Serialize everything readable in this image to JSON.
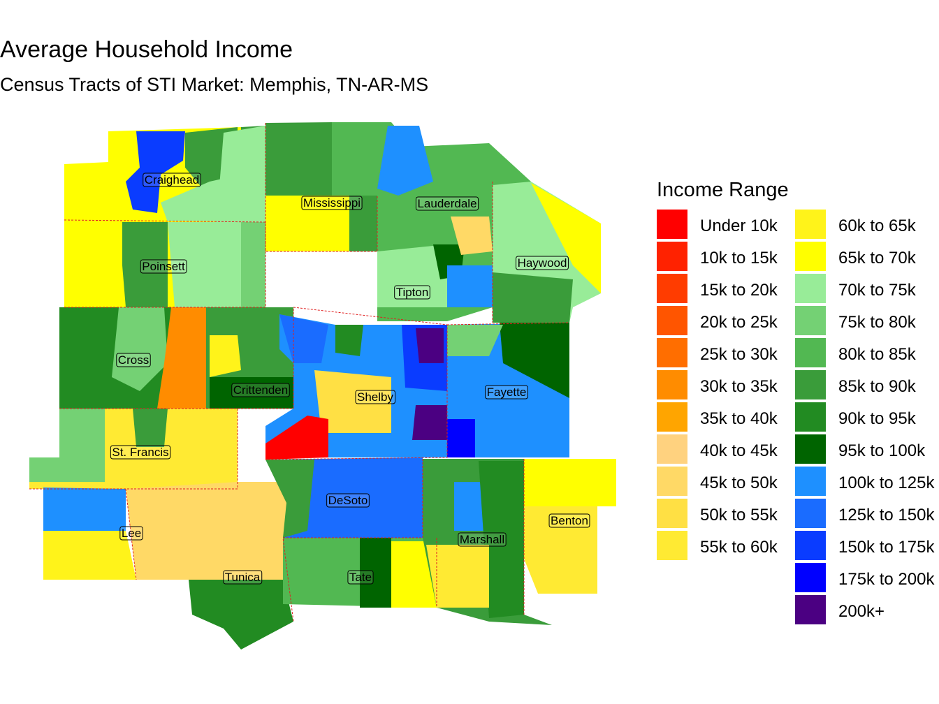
{
  "title": "Average Household Income",
  "subtitle": "Census Tracts of STI Market: Memphis, TN-AR-MS",
  "legend": {
    "title": "Income Range",
    "items": [
      {
        "label": "Under 10k",
        "color": "#ff0000"
      },
      {
        "label": "10k to 15k",
        "color": "#ff2200"
      },
      {
        "label": "15k to 20k",
        "color": "#ff3c00"
      },
      {
        "label": "20k to 25k",
        "color": "#ff5500"
      },
      {
        "label": "25k to 30k",
        "color": "#ff6e00"
      },
      {
        "label": "30k to 35k",
        "color": "#ff8c00"
      },
      {
        "label": "35k to 40k",
        "color": "#ffa500"
      },
      {
        "label": "40k to 45k",
        "color": "#ffd27f"
      },
      {
        "label": "45k to 50k",
        "color": "#ffd966"
      },
      {
        "label": "50k to 55k",
        "color": "#ffe044"
      },
      {
        "label": "55k to 60k",
        "color": "#ffea33"
      },
      {
        "label": "60k to 65k",
        "color": "#fff31a"
      },
      {
        "label": "65k to 70k",
        "color": "#ffff00"
      },
      {
        "label": "70k to 75k",
        "color": "#98ec98"
      },
      {
        "label": "75k to 80k",
        "color": "#74d174"
      },
      {
        "label": "80k to 85k",
        "color": "#52b852"
      },
      {
        "label": "85k to 90k",
        "color": "#3a9c3a"
      },
      {
        "label": "90k to 95k",
        "color": "#228b22"
      },
      {
        "label": "95k to 100k",
        "color": "#006400"
      },
      {
        "label": "100k to 125k",
        "color": "#1e90ff"
      },
      {
        "label": "125k to 150k",
        "color": "#1a6cff"
      },
      {
        "label": "150k to 175k",
        "color": "#0a3cff"
      },
      {
        "label": "175k to 200k",
        "color": "#0000ff"
      },
      {
        "label": "200k+",
        "color": "#4b0082"
      }
    ]
  },
  "counties": [
    "Craighead",
    "Mississippi",
    "Lauderdale",
    "Haywood",
    "Poinsett",
    "Tipton",
    "Cross",
    "Crittenden",
    "Shelby",
    "Fayette",
    "St. Francis",
    "DeSoto",
    "Lee",
    "Benton",
    "Marshall",
    "Tunica",
    "Tate"
  ]
}
